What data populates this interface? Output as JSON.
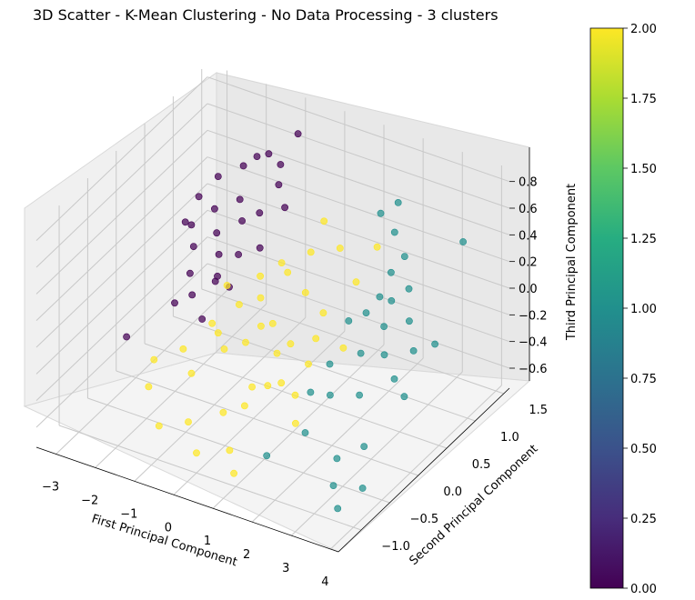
{
  "chart_data": {
    "type": "scatter",
    "title": "3D Scatter - K-Mean Clustering - No Data Processing - 3 clusters",
    "xlabel": "First Principal Component",
    "ylabel": "Second Principal Component",
    "zlabel": "Third Principal Component",
    "xlim": [
      -3.5,
      4.2
    ],
    "ylim": [
      -1.4,
      1.6
    ],
    "zlim": [
      -0.75,
      0.9
    ],
    "x_ticks": [
      "−3",
      "−2",
      "−1",
      "0",
      "1",
      "2",
      "3",
      "4"
    ],
    "y_ticks": [
      "−1.0",
      "−0.5",
      "0.0",
      "0.5",
      "1.0",
      "1.5"
    ],
    "z_ticks": [
      "−0.6",
      "−0.4",
      "−0.2",
      "0.0",
      "0.2",
      "0.4",
      "0.6",
      "0.8"
    ],
    "grid": true,
    "colorbar": {
      "range": [
        0,
        2
      ],
      "ticks": [
        "0.00",
        "0.25",
        "0.50",
        "0.75",
        "1.00",
        "1.25",
        "1.50",
        "1.75",
        "2.00"
      ],
      "colormap": "viridis"
    },
    "colors": {
      "cluster_0": "#440154",
      "cluster_1": "#21908d",
      "cluster_2": "#fde725"
    },
    "series": [
      {
        "cluster": 0,
        "points": [
          [
            -2.7,
            0.9,
            0.27
          ],
          [
            -2.6,
            0.7,
            0.15
          ],
          [
            -2.5,
            1.1,
            0.36
          ],
          [
            -2.4,
            0.6,
            0.05
          ],
          [
            -2.3,
            0.9,
            0.22
          ],
          [
            -2.2,
            0.4,
            -0.05
          ],
          [
            -2.1,
            0.8,
            0.1
          ],
          [
            -2.0,
            1.2,
            0.45
          ],
          [
            -2.0,
            0.3,
            -0.15
          ],
          [
            -1.9,
            0.7,
            0.0
          ],
          [
            -1.8,
            1.0,
            0.3
          ],
          [
            -1.7,
            0.5,
            -0.1
          ],
          [
            -1.6,
            0.9,
            0.2
          ],
          [
            -1.6,
            0.2,
            -0.25
          ],
          [
            -1.5,
            1.3,
            0.55
          ],
          [
            -1.4,
            0.7,
            0.05
          ],
          [
            -1.3,
            1.0,
            0.25
          ],
          [
            -1.2,
            0.4,
            -0.05
          ],
          [
            -1.1,
            1.2,
            0.4
          ],
          [
            -1.0,
            0.8,
            0.1
          ],
          [
            -0.9,
            1.4,
            0.72
          ],
          [
            -0.8,
            1.1,
            0.3
          ],
          [
            -2.8,
            -0.3,
            -0.3
          ],
          [
            -2.9,
            0.8,
            0.1
          ],
          [
            -1.5,
            0.4,
            0.0
          ],
          [
            -2.3,
            0.2,
            -0.2
          ],
          [
            -1.8,
            1.3,
            0.5
          ],
          [
            -1.2,
            1.3,
            0.5
          ]
        ]
      },
      {
        "cluster": 1,
        "points": [
          [
            1.5,
            1.2,
            0.45
          ],
          [
            1.8,
            1.3,
            0.52
          ],
          [
            2.0,
            1.1,
            0.4
          ],
          [
            2.2,
            0.9,
            0.2
          ],
          [
            2.4,
            1.0,
            0.3
          ],
          [
            2.5,
            0.7,
            0.1
          ],
          [
            2.6,
            0.5,
            0.0
          ],
          [
            2.8,
            0.8,
            0.18
          ],
          [
            2.9,
            0.3,
            -0.1
          ],
          [
            3.1,
            0.6,
            0.05
          ],
          [
            3.3,
            0.2,
            -0.2
          ],
          [
            3.5,
            0.4,
            -0.05
          ],
          [
            3.7,
            0.1,
            -0.25
          ],
          [
            3.9,
            0.5,
            0.0
          ],
          [
            1.8,
            0.1,
            -0.2
          ],
          [
            2.1,
            -0.1,
            -0.32
          ],
          [
            2.3,
            0.3,
            -0.15
          ],
          [
            1.9,
            -0.4,
            -0.5
          ],
          [
            1.5,
            -0.8,
            -0.55
          ],
          [
            3.0,
            -0.6,
            -0.5
          ],
          [
            3.4,
            -0.4,
            -0.45
          ],
          [
            3.8,
            -0.7,
            -0.6
          ],
          [
            2.7,
            0.0,
            -0.3
          ],
          [
            3.6,
            1.2,
            0.45
          ],
          [
            1.7,
            0.5,
            -0.05
          ],
          [
            2.0,
            0.6,
            0.0
          ],
          [
            3.2,
            -0.8,
            -0.6
          ],
          [
            3.6,
            -1.0,
            -0.65
          ],
          [
            1.6,
            -0.1,
            -0.35
          ],
          [
            2.2,
            0.7,
            0.1
          ]
        ]
      },
      {
        "cluster": 2,
        "points": [
          [
            -1.8,
            -0.6,
            -0.45
          ],
          [
            -1.5,
            -0.2,
            -0.3
          ],
          [
            -1.2,
            0.1,
            -0.2
          ],
          [
            -1.0,
            -0.4,
            -0.35
          ],
          [
            -0.8,
            0.3,
            -0.1
          ],
          [
            -0.6,
            -0.1,
            -0.25
          ],
          [
            -0.4,
            0.4,
            -0.05
          ],
          [
            -0.2,
            0.0,
            -0.2
          ],
          [
            0.0,
            0.6,
            0.1
          ],
          [
            0.2,
            0.2,
            -0.1
          ],
          [
            0.4,
            -0.3,
            -0.35
          ],
          [
            0.6,
            0.5,
            0.05
          ],
          [
            0.8,
            0.1,
            -0.15
          ],
          [
            1.0,
            -0.2,
            -0.3
          ],
          [
            1.2,
            0.4,
            0.0
          ],
          [
            1.4,
            0.0,
            -0.2
          ],
          [
            1.6,
            0.7,
            0.15
          ],
          [
            1.8,
            -0.5,
            -0.4
          ],
          [
            -0.5,
            -0.8,
            -0.5
          ],
          [
            0.1,
            -0.6,
            -0.45
          ],
          [
            0.7,
            -0.9,
            -0.55
          ],
          [
            1.1,
            -1.1,
            -0.6
          ],
          [
            -1.1,
            -0.9,
            -0.55
          ],
          [
            0.3,
            0.8,
            0.2
          ],
          [
            0.9,
            0.9,
            0.25
          ],
          [
            -0.3,
            0.7,
            0.1
          ],
          [
            1.3,
            0.2,
            -0.1
          ],
          [
            -0.7,
            0.6,
            0.0
          ],
          [
            0.5,
            -0.5,
            -0.4
          ],
          [
            0.0,
            -1.0,
            -0.6
          ],
          [
            -1.4,
            0.5,
            -0.1
          ],
          [
            1.5,
            -0.3,
            -0.3
          ],
          [
            0.6,
            0.0,
            -0.2
          ],
          [
            -0.1,
            0.2,
            -0.15
          ],
          [
            2.0,
            0.2,
            -0.1
          ],
          [
            -2.1,
            -0.3,
            -0.4
          ],
          [
            1.7,
            1.0,
            0.3
          ],
          [
            0.8,
            -0.3,
            -0.3
          ],
          [
            -0.9,
            0.0,
            -0.2
          ],
          [
            0.2,
            1.1,
            0.3
          ]
        ]
      }
    ]
  }
}
